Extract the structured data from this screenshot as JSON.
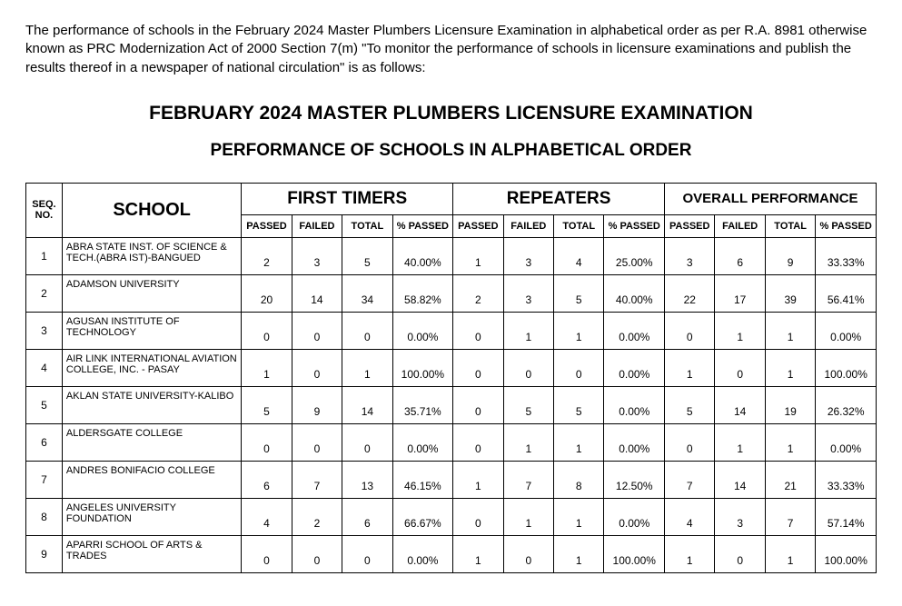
{
  "intro": "The performance of schools in the February 2024 Master Plumbers Licensure Examination in alphabetical order as per R.A. 8981 otherwise known as PRC Modernization Act of 2000 Section 7(m) \"To monitor the performance of schools in licensure examinations and publish the results thereof in a newspaper of national circulation\" is as follows:",
  "title_main": "FEBRUARY 2024 MASTER PLUMBERS LICENSURE EXAMINATION",
  "title_sub": "PERFORMANCE OF SCHOOLS IN ALPHABETICAL ORDER",
  "headers": {
    "seq": "SEQ. NO.",
    "school": "SCHOOL",
    "first_timers": "FIRST TIMERS",
    "repeaters": "REPEATERS",
    "overall": "OVERALL PERFORMANCE",
    "passed": "PASSED",
    "failed": "FAILED",
    "total": "TOTAL",
    "pct_passed": "% PASSED"
  },
  "rows": [
    {
      "seq": "1",
      "school": "ABRA STATE INST. OF SCIENCE & TECH.(ABRA IST)-BANGUED",
      "ft_passed": "2",
      "ft_failed": "3",
      "ft_total": "5",
      "ft_pct": "40.00%",
      "rp_passed": "1",
      "rp_failed": "3",
      "rp_total": "4",
      "rp_pct": "25.00%",
      "ov_passed": "3",
      "ov_failed": "6",
      "ov_total": "9",
      "ov_pct": "33.33%"
    },
    {
      "seq": "2",
      "school": "ADAMSON UNIVERSITY",
      "ft_passed": "20",
      "ft_failed": "14",
      "ft_total": "34",
      "ft_pct": "58.82%",
      "rp_passed": "2",
      "rp_failed": "3",
      "rp_total": "5",
      "rp_pct": "40.00%",
      "ov_passed": "22",
      "ov_failed": "17",
      "ov_total": "39",
      "ov_pct": "56.41%"
    },
    {
      "seq": "3",
      "school": "AGUSAN INSTITUTE OF TECHNOLOGY",
      "ft_passed": "0",
      "ft_failed": "0",
      "ft_total": "0",
      "ft_pct": "0.00%",
      "rp_passed": "0",
      "rp_failed": "1",
      "rp_total": "1",
      "rp_pct": "0.00%",
      "ov_passed": "0",
      "ov_failed": "1",
      "ov_total": "1",
      "ov_pct": "0.00%"
    },
    {
      "seq": "4",
      "school": "AIR LINK INTERNATIONAL AVIATION COLLEGE, INC. - PASAY",
      "ft_passed": "1",
      "ft_failed": "0",
      "ft_total": "1",
      "ft_pct": "100.00%",
      "rp_passed": "0",
      "rp_failed": "0",
      "rp_total": "0",
      "rp_pct": "0.00%",
      "ov_passed": "1",
      "ov_failed": "0",
      "ov_total": "1",
      "ov_pct": "100.00%"
    },
    {
      "seq": "5",
      "school": "AKLAN STATE UNIVERSITY-KALIBO",
      "ft_passed": "5",
      "ft_failed": "9",
      "ft_total": "14",
      "ft_pct": "35.71%",
      "rp_passed": "0",
      "rp_failed": "5",
      "rp_total": "5",
      "rp_pct": "0.00%",
      "ov_passed": "5",
      "ov_failed": "14",
      "ov_total": "19",
      "ov_pct": "26.32%"
    },
    {
      "seq": "6",
      "school": "ALDERSGATE COLLEGE",
      "ft_passed": "0",
      "ft_failed": "0",
      "ft_total": "0",
      "ft_pct": "0.00%",
      "rp_passed": "0",
      "rp_failed": "1",
      "rp_total": "1",
      "rp_pct": "0.00%",
      "ov_passed": "0",
      "ov_failed": "1",
      "ov_total": "1",
      "ov_pct": "0.00%"
    },
    {
      "seq": "7",
      "school": "ANDRES BONIFACIO COLLEGE",
      "ft_passed": "6",
      "ft_failed": "7",
      "ft_total": "13",
      "ft_pct": "46.15%",
      "rp_passed": "1",
      "rp_failed": "7",
      "rp_total": "8",
      "rp_pct": "12.50%",
      "ov_passed": "7",
      "ov_failed": "14",
      "ov_total": "21",
      "ov_pct": "33.33%"
    },
    {
      "seq": "8",
      "school": "ANGELES UNIVERSITY FOUNDATION",
      "ft_passed": "4",
      "ft_failed": "2",
      "ft_total": "6",
      "ft_pct": "66.67%",
      "rp_passed": "0",
      "rp_failed": "1",
      "rp_total": "1",
      "rp_pct": "0.00%",
      "ov_passed": "4",
      "ov_failed": "3",
      "ov_total": "7",
      "ov_pct": "57.14%"
    },
    {
      "seq": "9",
      "school": "APARRI SCHOOL OF ARTS & TRADES",
      "ft_passed": "0",
      "ft_failed": "0",
      "ft_total": "0",
      "ft_pct": "0.00%",
      "rp_passed": "1",
      "rp_failed": "0",
      "rp_total": "1",
      "rp_pct": "100.00%",
      "ov_passed": "1",
      "ov_failed": "0",
      "ov_total": "1",
      "ov_pct": "100.00%"
    }
  ]
}
